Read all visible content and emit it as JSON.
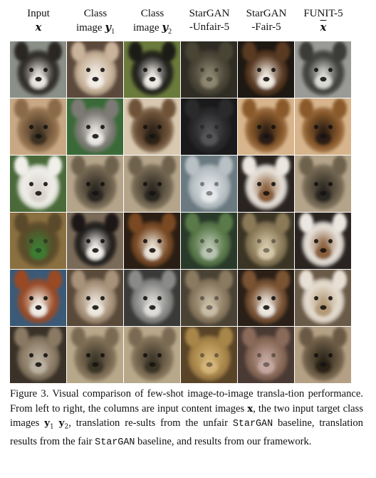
{
  "headers": [
    {
      "line1": "Input",
      "line2": "x",
      "sub": ""
    },
    {
      "line1": "Class",
      "line2pre": "image ",
      "line2": "y",
      "sub": "1"
    },
    {
      "line1": "Class",
      "line2pre": "image ",
      "line2": "y",
      "sub": "2"
    },
    {
      "line1": "StarGAN",
      "line2": "-Unfair-5",
      "sub": ""
    },
    {
      "line1": "StarGAN",
      "line2": "-Fair-5",
      "sub": ""
    },
    {
      "line1": "FUNIT-5",
      "line2": "x",
      "sub": ""
    }
  ],
  "rows": [
    [
      "dog-black-white",
      "dog-shih-tzu",
      "dog-black-white-fluffy",
      "blurry-dog-dark",
      "dog-brown-black",
      "dog-gray-white"
    ],
    [
      "coyote",
      "husky-dog",
      "akita-dog",
      "blurry-dark-dog",
      "shepherd-dog",
      "shepherd-dog"
    ],
    [
      "white-dog",
      "tabby-cat",
      "tabby-cat",
      "blurry-cat-white",
      "dog-white-brown",
      "tabby-cat"
    ],
    [
      "blurry-creature",
      "border-collie",
      "collie-dog",
      "blurry-dog-green",
      "blurry-dog-tan",
      "dog-white-brown"
    ],
    [
      "brittany-spaniel",
      "small-fluffy-dog",
      "small-fluffy-dog-gray",
      "blurry-cat-tan",
      "dog-brown-white",
      "small-fluffy-dog-white"
    ],
    [
      "coyote-gray",
      "meerkat",
      "meerkat",
      "blurry-meerkat",
      "blurry-coyote",
      "meerkat-face"
    ]
  ],
  "caption": {
    "p1": "Figure 3. Visual comparison of few-shot image-to-image transla-tion performance. From left to right, the columns are input content images ",
    "x": "x",
    "p2": ", the two input target class images ",
    "y1": "y",
    "y1sub": "1",
    "y2": "y",
    "y2sub": "2",
    "p3": ", translation re-sults from the unfair ",
    "stargan1": "StarGAN",
    "p4": " baseline, translation results from the fair ",
    "stargan2": "StarGAN",
    "p5": " baseline, and results from our framework."
  },
  "palette": {
    "dog-black-white": [
      "#2a2622",
      "#e8e4de",
      "#8a8f88"
    ],
    "dog-shih-tzu": [
      "#c9b39a",
      "#f1ece6",
      "#5b4a3c"
    ],
    "dog-black-white-fluffy": [
      "#1c1a18",
      "#ece9e3",
      "#6a7b3c"
    ],
    "blurry-dog-dark": [
      "#4a4536",
      "#8c8670",
      "#2f2c24"
    ],
    "dog-brown-black": [
      "#5a3a22",
      "#efe8df",
      "#1e1812"
    ],
    "dog-gray-white": [
      "#3a3a38",
      "#d9d9d6",
      "#9a9a96"
    ],
    "coyote": [
      "#8a6a48",
      "#3c3024",
      "#c8a884"
    ],
    "husky-dog": [
      "#7d7a74",
      "#e8e6e2",
      "#3a6a38"
    ],
    "akita-dog": [
      "#6e5238",
      "#2a2018",
      "#d8c8b0"
    ],
    "blurry-dark-dog": [
      "#2a2a2c",
      "#545458",
      "#1a1a1c"
    ],
    "shepherd-dog": [
      "#8a5a2c",
      "#2a1c12",
      "#d7b48c"
    ],
    "white-dog": [
      "#f1efea",
      "#d8d4cc",
      "#4a6a3a"
    ],
    "tabby-cat": [
      "#6e624e",
      "#2c2820",
      "#b4a48a"
    ],
    "blurry-cat-white": [
      "#b8c0c4",
      "#e4e8ea",
      "#6a7a80"
    ],
    "dog-white-brown": [
      "#ebe6df",
      "#8a5e3a",
      "#2a2420"
    ],
    "blurry-creature": [
      "#5a4a2a",
      "#3c7a32",
      "#8a7040"
    ],
    "border-collie": [
      "#1a1816",
      "#efece8",
      "#7a6a58"
    ],
    "collie-dog": [
      "#7a4a24",
      "#e9e2d6",
      "#2a1e14"
    ],
    "blurry-dog-green": [
      "#5a7a4a",
      "#b8c4b0",
      "#2a3a2a"
    ],
    "blurry-dog-tan": [
      "#8a7a58",
      "#d4c8a8",
      "#3a3424"
    ],
    "brittany-spaniel": [
      "#9a4a24",
      "#f0ebe4",
      "#3a5a78"
    ],
    "small-fluffy-dog": [
      "#a8927a",
      "#ece6dc",
      "#5a4a3a"
    ],
    "small-fluffy-dog-gray": [
      "#8a8a88",
      "#dedcd8",
      "#3a3a38"
    ],
    "blurry-cat-tan": [
      "#8a7a60",
      "#c8bca4",
      "#4a4234"
    ],
    "dog-brown-white": [
      "#7a5232",
      "#ece6de",
      "#2a2018"
    ],
    "small-fluffy-dog-white": [
      "#e8e0d4",
      "#b49a78",
      "#6a5a48"
    ],
    "coyote-gray": [
      "#8a7a64",
      "#bab0a0",
      "#3a3228"
    ],
    "meerkat": [
      "#7a6a52",
      "#3a3428",
      "#b8a88a"
    ],
    "blurry-meerkat": [
      "#a8864a",
      "#d4b478",
      "#5a4428"
    ],
    "blurry-coyote": [
      "#8a6a58",
      "#c4a8a0",
      "#4a3a34"
    ],
    "meerkat-face": [
      "#6a5a44",
      "#2a2418",
      "#b4a084"
    ]
  }
}
